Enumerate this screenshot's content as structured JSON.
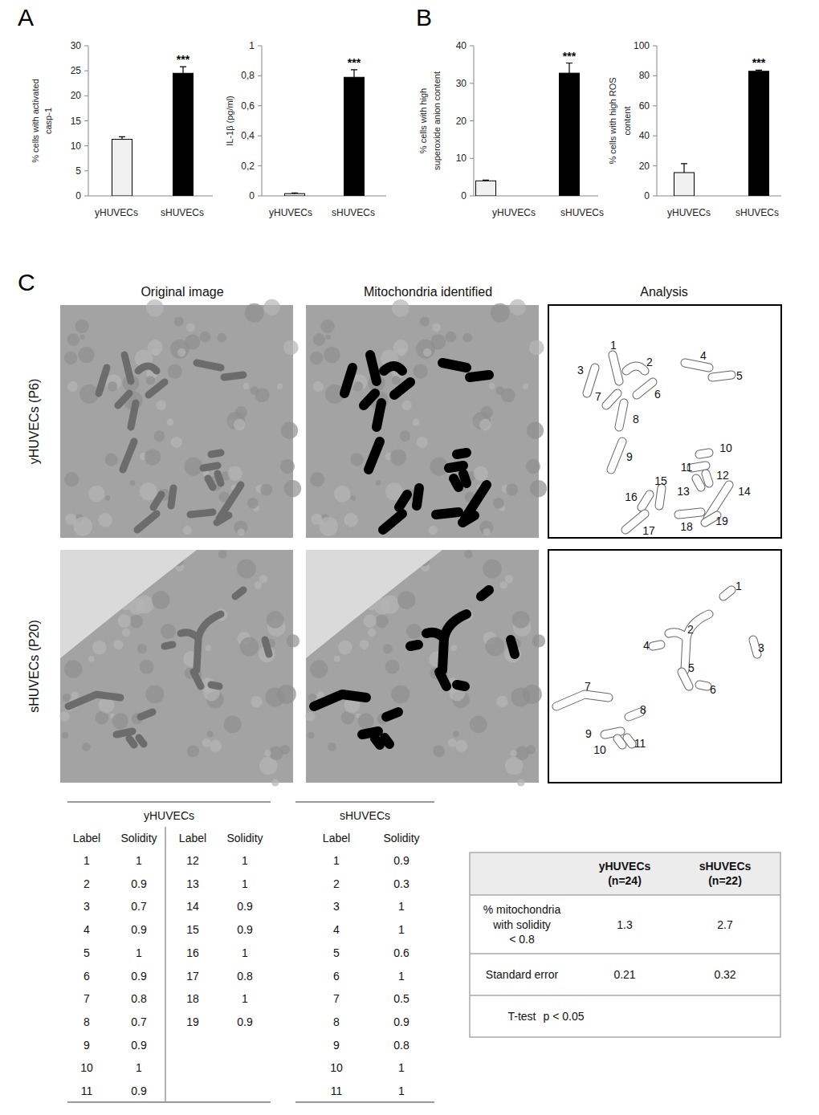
{
  "panel_labels": [
    "A",
    "B",
    "C"
  ],
  "chart_data": [
    {
      "type": "bar",
      "ylabel": [
        "% cells  with activated",
        "casp-1"
      ],
      "categories": [
        "yHUVECs",
        "sHUVECs"
      ],
      "values": [
        11.3,
        24.5
      ],
      "errors": [
        0.5,
        1.3
      ],
      "colors": [
        "#f0f0f0",
        "#000000"
      ],
      "annotations": [
        null,
        "***"
      ],
      "ylim": [
        0,
        30
      ],
      "yticks": [
        0,
        5,
        10,
        15,
        20,
        25,
        30
      ]
    },
    {
      "type": "bar",
      "ylabel": [
        "IL-1β (pg/ml)"
      ],
      "categories": [
        "yHUVECs",
        "sHUVECs"
      ],
      "values": [
        0.015,
        0.79
      ],
      "errors": [
        0.005,
        0.05
      ],
      "colors": [
        "#f0f0f0",
        "#000000"
      ],
      "annotations": [
        null,
        "***"
      ],
      "ylim": [
        0,
        1
      ],
      "yticks": [
        0,
        {
          "value": 0.2,
          "label": "0,2"
        },
        {
          "value": 0.4,
          "label": "0,4"
        },
        {
          "value": 0.6,
          "label": "0,6"
        },
        {
          "value": 0.8,
          "label": "0,8"
        },
        1
      ]
    },
    {
      "type": "bar",
      "ylabel": [
        "% cells with high",
        "superoxide anion content"
      ],
      "categories": [
        "yHUVECs",
        "sHUVECs"
      ],
      "values": [
        4,
        32.7
      ],
      "errors": [
        0.2,
        2.7
      ],
      "colors": [
        "#f0f0f0",
        "#000000"
      ],
      "annotations": [
        null,
        "***"
      ],
      "ylim": [
        0,
        40
      ],
      "yticks": [
        0,
        10,
        20,
        30,
        40
      ]
    },
    {
      "type": "bar",
      "ylabel": [
        "% cells with high ROS",
        "content"
      ],
      "categories": [
        "yHUVECs",
        "sHUVECs"
      ],
      "values": [
        15.5,
        83
      ],
      "errors": [
        6,
        0.8
      ],
      "colors": [
        "#f0f0f0",
        "#000000"
      ],
      "annotations": [
        null,
        "***"
      ],
      "ylim": [
        0,
        100
      ],
      "yticks": [
        0,
        20,
        40,
        60,
        80,
        100
      ]
    }
  ],
  "panel_c": {
    "column_headers": [
      "Original image",
      "Mitochondria identified",
      "Analysis"
    ],
    "table_headers": [
      "Label",
      "Solidity"
    ],
    "rows": [
      {
        "label": "yHUVECs (P6)",
        "table_title": "yHUVECs",
        "mitochondria": [
          {
            "label": 1,
            "solidity": 1
          },
          {
            "label": 2,
            "solidity": 0.9
          },
          {
            "label": 3,
            "solidity": 0.7
          },
          {
            "label": 4,
            "solidity": 0.9
          },
          {
            "label": 5,
            "solidity": 1
          },
          {
            "label": 6,
            "solidity": 0.9
          },
          {
            "label": 7,
            "solidity": 0.8
          },
          {
            "label": 8,
            "solidity": 0.7
          },
          {
            "label": 9,
            "solidity": 0.9
          },
          {
            "label": 10,
            "solidity": 1
          },
          {
            "label": 11,
            "solidity": 0.9
          },
          {
            "label": 12,
            "solidity": 1
          },
          {
            "label": 13,
            "solidity": 1
          },
          {
            "label": 14,
            "solidity": 0.9
          },
          {
            "label": 15,
            "solidity": 0.9
          },
          {
            "label": 16,
            "solidity": 1
          },
          {
            "label": 17,
            "solidity": 0.8
          },
          {
            "label": 18,
            "solidity": 1
          },
          {
            "label": 19,
            "solidity": 0.9
          }
        ]
      },
      {
        "label": "sHUVECs (P20)",
        "table_title": "sHUVECs",
        "mitochondria": [
          {
            "label": 1,
            "solidity": 0.9
          },
          {
            "label": 2,
            "solidity": 0.3
          },
          {
            "label": 3,
            "solidity": 1
          },
          {
            "label": 4,
            "solidity": 1
          },
          {
            "label": 5,
            "solidity": 0.6
          },
          {
            "label": 6,
            "solidity": 1
          },
          {
            "label": 7,
            "solidity": 0.5
          },
          {
            "label": 8,
            "solidity": 0.9
          },
          {
            "label": 9,
            "solidity": 0.8
          },
          {
            "label": 10,
            "solidity": 1
          },
          {
            "label": 11,
            "solidity": 1
          }
        ]
      }
    ],
    "summary": {
      "columns": [
        [
          "yHUVECs",
          "(n=24)"
        ],
        [
          "sHUVECs",
          "(n=22)"
        ]
      ],
      "rows": [
        {
          "label": [
            "% mitochondria",
            "with solidity",
            "< 0.8"
          ],
          "values": [
            1.3,
            2.7
          ]
        },
        {
          "label": [
            "Standard error"
          ],
          "values": [
            0.21,
            0.32
          ]
        },
        {
          "label": [
            "T-test"
          ],
          "text": "p < 0.05"
        }
      ]
    }
  }
}
